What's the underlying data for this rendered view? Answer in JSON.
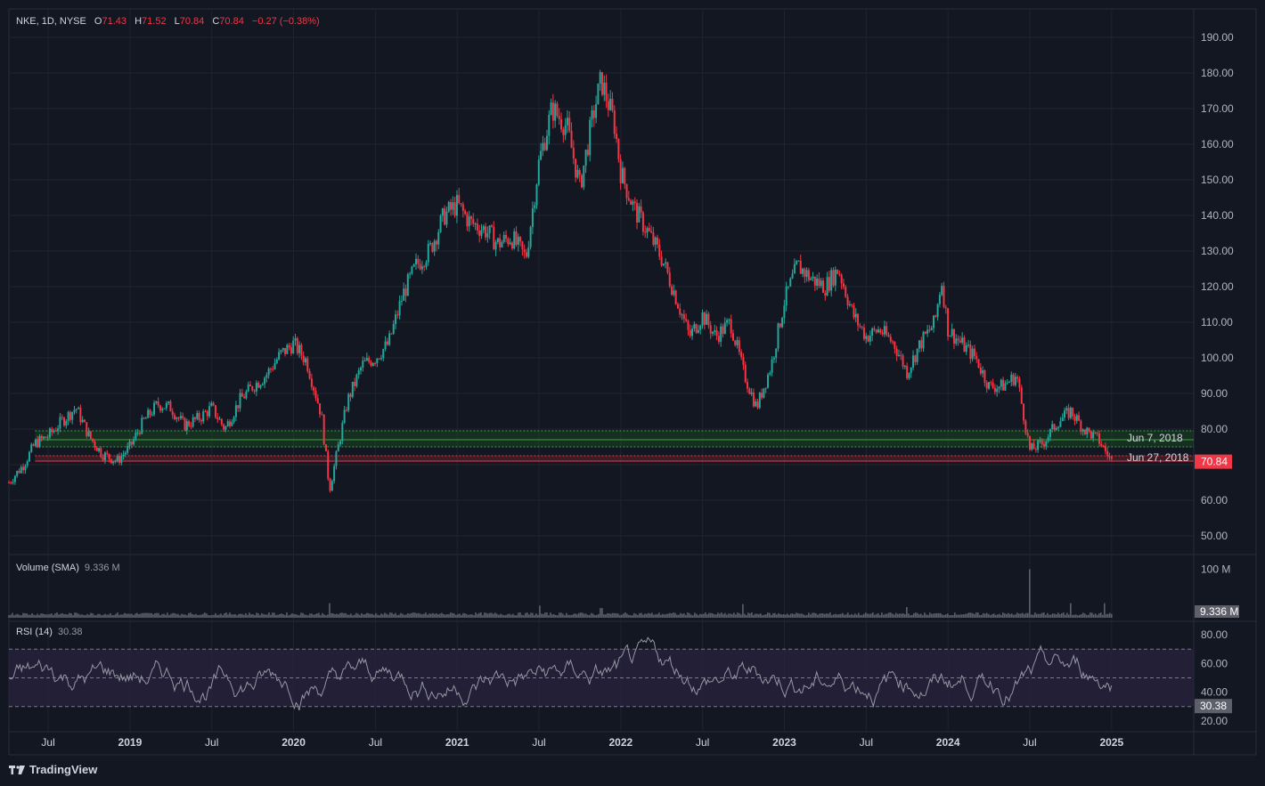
{
  "header": {
    "symbol": "NKE, 1D, NYSE",
    "o_label": "O",
    "o_value": "71.43",
    "h_label": "H",
    "h_value": "71.52",
    "l_label": "L",
    "l_value": "70.84",
    "c_label": "C",
    "c_value": "70.84",
    "change": "−0.27 (−0.38%)"
  },
  "colors": {
    "background": "#131722",
    "up": "#26a69a",
    "down": "#f23645",
    "grid": "#1f2430",
    "zone_green": "#1b5e20",
    "zone_red": "#f23645",
    "rsi_band": "#2a2340"
  },
  "price_chart": {
    "type": "candlestick",
    "ylim": [
      45,
      195
    ],
    "y_ticks": [
      "190.00",
      "180.00",
      "170.00",
      "160.00",
      "150.00",
      "140.00",
      "130.00",
      "120.00",
      "110.00",
      "100.00",
      "90.00",
      "80.00",
      "70.00",
      "60.00",
      "50.00"
    ],
    "last_price": "70.84",
    "closes": [
      [
        2018.26,
        65
      ],
      [
        2018.35,
        70
      ],
      [
        2018.42,
        76
      ],
      [
        2018.5,
        78
      ],
      [
        2018.58,
        82
      ],
      [
        2018.67,
        86
      ],
      [
        2018.75,
        78
      ],
      [
        2018.83,
        73
      ],
      [
        2018.92,
        71
      ],
      [
        2019.0,
        75
      ],
      [
        2019.08,
        82
      ],
      [
        2019.17,
        87
      ],
      [
        2019.25,
        86
      ],
      [
        2019.33,
        81
      ],
      [
        2019.42,
        83
      ],
      [
        2019.5,
        86
      ],
      [
        2019.58,
        80
      ],
      [
        2019.67,
        88
      ],
      [
        2019.75,
        92
      ],
      [
        2019.83,
        95
      ],
      [
        2019.92,
        101
      ],
      [
        2020.0,
        104
      ],
      [
        2020.08,
        99
      ],
      [
        2020.17,
        84
      ],
      [
        2020.22,
        63
      ],
      [
        2020.33,
        88
      ],
      [
        2020.42,
        98
      ],
      [
        2020.5,
        100
      ],
      [
        2020.58,
        104
      ],
      [
        2020.67,
        118
      ],
      [
        2020.75,
        126
      ],
      [
        2020.83,
        130
      ],
      [
        2020.92,
        140
      ],
      [
        2021.0,
        143
      ],
      [
        2021.08,
        138
      ],
      [
        2021.17,
        136
      ],
      [
        2021.25,
        132
      ],
      [
        2021.33,
        134
      ],
      [
        2021.42,
        128
      ],
      [
        2021.5,
        155
      ],
      [
        2021.58,
        170
      ],
      [
        2021.67,
        165
      ],
      [
        2021.75,
        148
      ],
      [
        2021.83,
        168
      ],
      [
        2021.88,
        178
      ],
      [
        2021.96,
        166
      ],
      [
        2022.0,
        152
      ],
      [
        2022.08,
        142
      ],
      [
        2022.17,
        135
      ],
      [
        2022.25,
        128
      ],
      [
        2022.33,
        118
      ],
      [
        2022.42,
        106
      ],
      [
        2022.5,
        112
      ],
      [
        2022.58,
        106
      ],
      [
        2022.67,
        110
      ],
      [
        2022.75,
        96
      ],
      [
        2022.83,
        86
      ],
      [
        2022.92,
        98
      ],
      [
        2023.0,
        116
      ],
      [
        2023.08,
        126
      ],
      [
        2023.17,
        122
      ],
      [
        2023.25,
        120
      ],
      [
        2023.33,
        125
      ],
      [
        2023.42,
        112
      ],
      [
        2023.5,
        106
      ],
      [
        2023.58,
        108
      ],
      [
        2023.67,
        104
      ],
      [
        2023.75,
        96
      ],
      [
        2023.83,
        104
      ],
      [
        2023.92,
        110
      ],
      [
        2023.96,
        122
      ],
      [
        2024.0,
        108
      ],
      [
        2024.08,
        104
      ],
      [
        2024.17,
        100
      ],
      [
        2024.25,
        92
      ],
      [
        2024.33,
        92
      ],
      [
        2024.42,
        95
      ],
      [
        2024.5,
        74
      ],
      [
        2024.58,
        76
      ],
      [
        2024.67,
        82
      ],
      [
        2024.75,
        85
      ],
      [
        2024.83,
        80
      ],
      [
        2024.92,
        77
      ],
      [
        2025.0,
        71
      ]
    ],
    "support_lines": [
      {
        "value": 79.5,
        "color": "zone_green",
        "style": "dotted"
      },
      {
        "value": 77.0,
        "color": "zone_green",
        "style": "solid"
      },
      {
        "value": 75.0,
        "color": "zone_green",
        "style": "dotted"
      },
      {
        "value": 72.5,
        "color": "zone_red",
        "style": "dotted"
      },
      {
        "value": 71.0,
        "color": "zone_red",
        "style": "solid"
      }
    ],
    "zone_start_x": 2018.42,
    "annotations": [
      {
        "text": "Jun 7, 2018",
        "value": 77.5
      },
      {
        "text": "Jun 27, 2018",
        "value": 72.0
      }
    ]
  },
  "x_axis": {
    "xlim": [
      2018.26,
      2025.6
    ],
    "ticks": [
      [
        "Jul",
        2018.5
      ],
      [
        "2019",
        2019.0
      ],
      [
        "Jul",
        2019.5
      ],
      [
        "2020",
        2020.0
      ],
      [
        "Jul",
        2020.5
      ],
      [
        "2021",
        2021.0
      ],
      [
        "Jul",
        2021.5
      ],
      [
        "2022",
        2022.0
      ],
      [
        "Jul",
        2022.5
      ],
      [
        "2023",
        2023.0
      ],
      [
        "Jul",
        2023.5
      ],
      [
        "2024",
        2024.0
      ],
      [
        "Jul",
        2024.5
      ],
      [
        "2025",
        2025.0
      ]
    ],
    "bold": [
      "2019",
      "2020",
      "2021",
      "2022",
      "2023",
      "2024",
      "2025"
    ]
  },
  "volume": {
    "title": "Volume (SMA)",
    "value": "9.336 M",
    "tick": "100 M",
    "last_label": "9.336 M",
    "ylim": [
      0,
      110
    ],
    "spikes": [
      [
        2020.22,
        30
      ],
      [
        2021.5,
        25
      ],
      [
        2021.88,
        20
      ],
      [
        2022.75,
        28
      ],
      [
        2023.75,
        22
      ],
      [
        2024.5,
        100
      ],
      [
        2024.75,
        30
      ],
      [
        2024.96,
        30
      ]
    ]
  },
  "rsi": {
    "title": "RSI (14)",
    "value": "30.38",
    "ticks": [
      "80.00",
      "60.00",
      "40.00",
      "20.00"
    ],
    "ylim": [
      15,
      85
    ],
    "upper": 70,
    "middle": 50,
    "lower": 30,
    "last_label": "30.38"
  },
  "brand": {
    "name": "TradingView"
  }
}
